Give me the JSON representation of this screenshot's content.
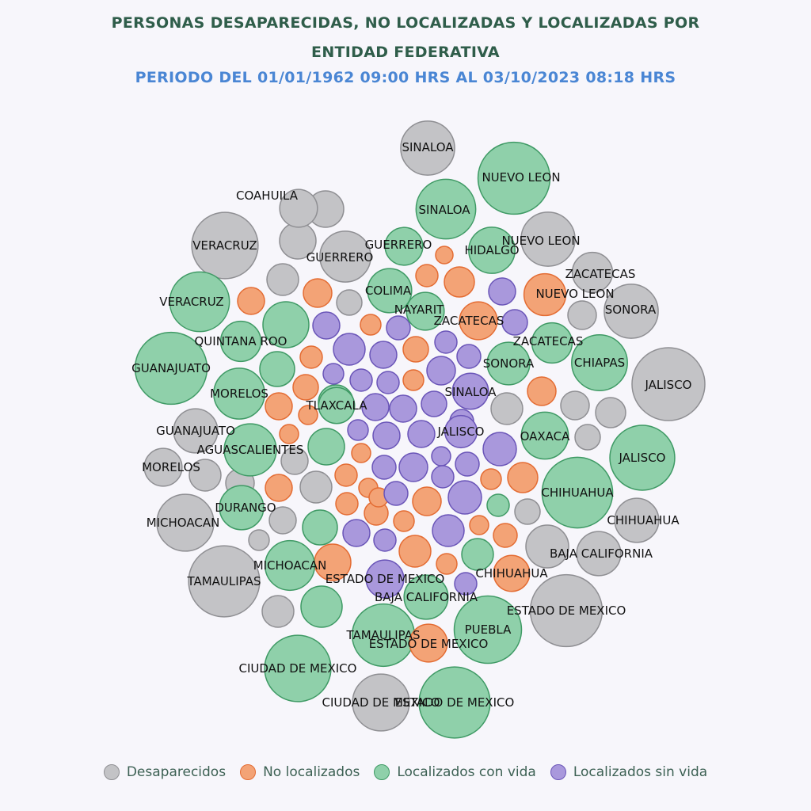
{
  "header": {
    "title_line1": "PERSONAS DESAPARECIDAS, NO LOCALIZADAS Y LOCALIZADAS POR",
    "title_line2": "ENTIDAD FEDERATIVA",
    "subtitle": "PERIODO DEL 01/01/1962 09:00 HRS AL 03/10/2023 08:18 HRS"
  },
  "colors": {
    "Desaparecidos": {
      "fill": "#c3c3c6",
      "stroke": "#8f8f93"
    },
    "No localizados": {
      "fill": "#f3a376",
      "stroke": "#e46c33"
    },
    "Localizados con vida": {
      "fill": "#8fd0aa",
      "stroke": "#3f9a65"
    },
    "Localizados sin vida": {
      "fill": "#a998dc",
      "stroke": "#6a55b8"
    }
  },
  "chart_data": {
    "type": "bubble",
    "title": "PERSONAS DESAPARECIDAS, NO LOCALIZADAS Y LOCALIZADAS POR ENTIDAD FEDERATIVA",
    "subtitle": "PERIODO DEL 01/01/1962 09:00 HRS AL 03/10/2023 08:18 HRS",
    "legend": [
      "Desaparecidos",
      "No localizados",
      "Localizados con vida",
      "Localizados sin vida"
    ],
    "legend_position": "bottom",
    "value_note": "relative bubble areas estimated from size",
    "labeled": [
      {
        "state": "SINALOA",
        "category": "Desaparecidos",
        "value": 45
      },
      {
        "state": "NUEVO LEON",
        "category": "Localizados con vida",
        "value": 80
      },
      {
        "state": "SINALOA",
        "category": "Localizados con vida",
        "value": 55
      },
      {
        "state": "COAHUILA",
        "category": "Desaparecidos",
        "value": 22
      },
      {
        "state": "VERACRUZ",
        "category": "Desaparecidos",
        "value": 68
      },
      {
        "state": "GUERRERO",
        "category": "Desaparecidos",
        "value": 40
      },
      {
        "state": "GUERRERO",
        "category": "Localizados con vida",
        "value": 22
      },
      {
        "state": "HIDALGO",
        "category": "Localizados con vida",
        "value": 33
      },
      {
        "state": "NUEVO LEON",
        "category": "Desaparecidos",
        "value": 45
      },
      {
        "state": "ZACATECAS",
        "category": "Desaparecidos",
        "value": 25
      },
      {
        "state": "NUEVO LEON",
        "category": "No localizados",
        "value": 27
      },
      {
        "state": "SONORA",
        "category": "Desaparecidos",
        "value": 45
      },
      {
        "state": "VERACRUZ",
        "category": "Localizados con vida",
        "value": 55
      },
      {
        "state": "COLIMA",
        "category": "Localizados con vida",
        "value": 30
      },
      {
        "state": "NAYARIT",
        "category": "Localizados con vida",
        "value": 22
      },
      {
        "state": "ZACATECAS",
        "category": "No localizados",
        "value": 22
      },
      {
        "state": "QUINTANA ROO",
        "category": "Localizados con vida",
        "value": 25
      },
      {
        "state": "ZACATECAS",
        "category": "Localizados con vida",
        "value": 25
      },
      {
        "state": "CHIAPAS",
        "category": "Localizados con vida",
        "value": 48
      },
      {
        "state": "JALISCO",
        "category": "Desaparecidos",
        "value": 82
      },
      {
        "state": "GUANAJUATO",
        "category": "Localizados con vida",
        "value": 80
      },
      {
        "state": "SONORA",
        "category": "Localizados con vida",
        "value": 28
      },
      {
        "state": "MORELOS",
        "category": "Localizados con vida",
        "value": 40
      },
      {
        "state": "SINALOA",
        "category": "Localizados sin vida",
        "value": 20
      },
      {
        "state": "TLAXCALA",
        "category": "Localizados con vida",
        "value": 20
      },
      {
        "state": "GUANAJUATO",
        "category": "Desaparecidos",
        "value": 30
      },
      {
        "state": "JALISCO",
        "category": "Localizados sin vida",
        "value": 16
      },
      {
        "state": "OAXACA",
        "category": "Localizados con vida",
        "value": 34
      },
      {
        "state": "AGUASCALIENTES",
        "category": "Localizados con vida",
        "value": 42
      },
      {
        "state": "JALISCO",
        "category": "Localizados con vida",
        "value": 65
      },
      {
        "state": "MORELOS",
        "category": "Desaparecidos",
        "value": 22
      },
      {
        "state": "DURANGO",
        "category": "Localizados con vida",
        "value": 30
      },
      {
        "state": "CHIHUAHUA",
        "category": "Localizados con vida",
        "value": 77
      },
      {
        "state": "CHIHUAHUA",
        "category": "Desaparecidos",
        "value": 30
      },
      {
        "state": "MICHOACAN",
        "category": "Desaparecidos",
        "value": 50
      },
      {
        "state": "BAJA CALIFORNIA",
        "category": "Desaparecidos",
        "value": 30
      },
      {
        "state": "MICHOACAN",
        "category": "Localizados con vida",
        "value": 38
      },
      {
        "state": "TAMAULIPAS",
        "category": "Desaparecidos",
        "value": 78
      },
      {
        "state": "ESTADO DE MEXICO",
        "category": "Localizados sin vida",
        "value": 22
      },
      {
        "state": "CHIHUAHUA",
        "category": "No localizados",
        "value": 20
      },
      {
        "state": "BAJA CALIFORNIA",
        "category": "Localizados con vida",
        "value": 30
      },
      {
        "state": "ESTADO DE MEXICO",
        "category": "Desaparecidos",
        "value": 80
      },
      {
        "state": "TAMAULIPAS",
        "category": "Localizados con vida",
        "value": 60
      },
      {
        "state": "PUEBLA",
        "category": "Localizados con vida",
        "value": 70
      },
      {
        "state": "ESTADO DE MEXICO",
        "category": "No localizados",
        "value": 22
      },
      {
        "state": "CIUDAD DE MEXICO",
        "category": "Localizados con vida",
        "value": 68
      },
      {
        "state": "CIUDAD DE MEXICO",
        "category": "Desaparecidos",
        "value": 50
      },
      {
        "state": "ESTADO DE MEXICO",
        "category": "Localizados con vida",
        "value": 78
      }
    ]
  }
}
